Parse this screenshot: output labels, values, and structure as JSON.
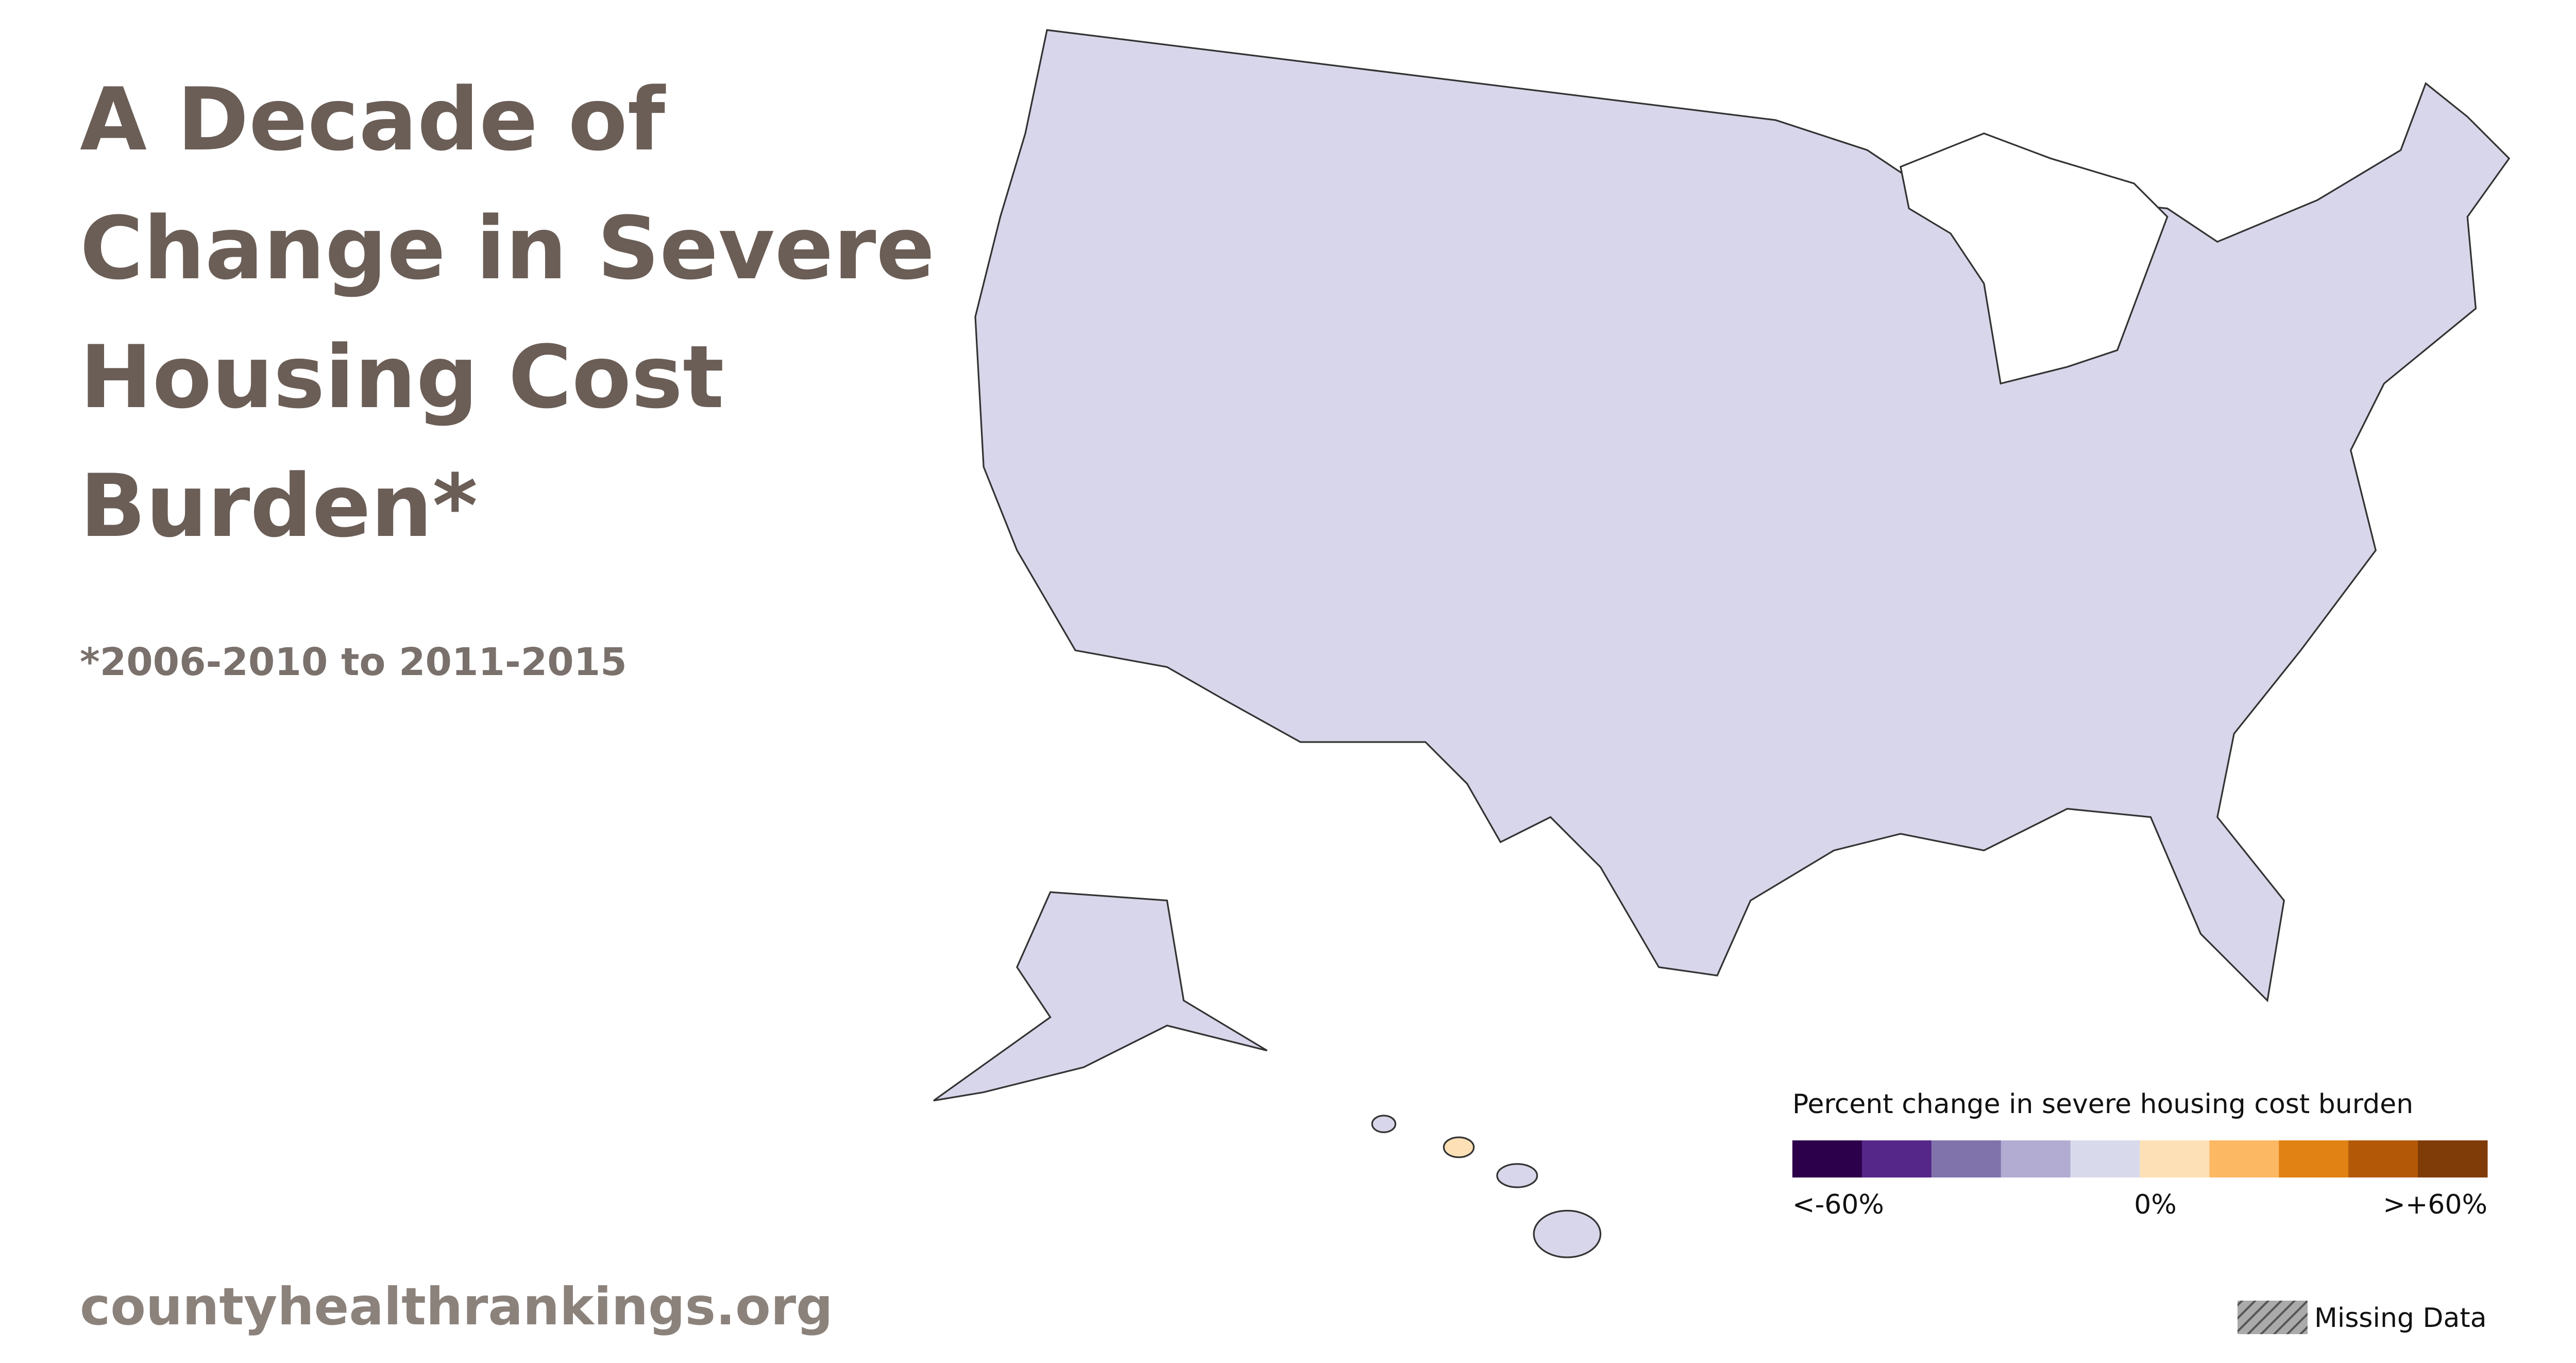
{
  "title_lines": [
    "A Decade of",
    "Change in Severe",
    "Housing Cost",
    "Burden*"
  ],
  "subtitle": "*2006-2010 to 2011-2015",
  "source": "countyhealthrankings.org",
  "legend": {
    "title": "Percent change in severe housing cost burden",
    "colors": [
      "#2d004b",
      "#542788",
      "#8073ac",
      "#b2abd2",
      "#d8daeb",
      "#fee0b6",
      "#fdb863",
      "#e08214",
      "#b35806",
      "#7f3b08"
    ],
    "labels": [
      "<-60%",
      "0%",
      ">+60%"
    ],
    "missing": "Missing Data"
  }
}
